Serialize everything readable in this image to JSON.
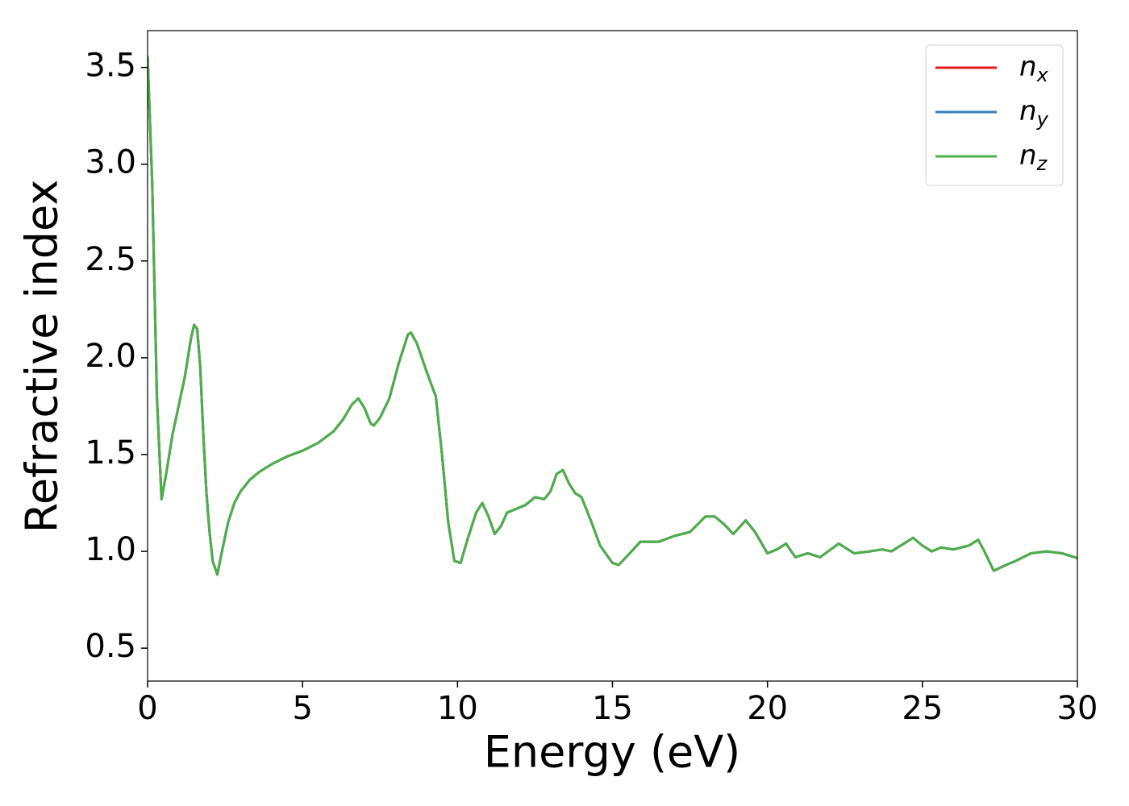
{
  "chart_data": {
    "type": "line",
    "xlabel": "Energy (eV)",
    "ylabel": "Refractive index",
    "x": [
      0,
      0.15,
      0.3,
      0.45,
      0.6,
      0.8,
      1.0,
      1.2,
      1.4,
      1.5,
      1.6,
      1.7,
      1.8,
      1.9,
      2.0,
      2.1,
      2.25,
      2.4,
      2.6,
      2.8,
      3.0,
      3.3,
      3.6,
      4.0,
      4.5,
      5.0,
      5.5,
      6.0,
      6.3,
      6.6,
      6.8,
      7.0,
      7.2,
      7.3,
      7.5,
      7.8,
      8.1,
      8.4,
      8.5,
      8.7,
      9.0,
      9.3,
      9.5,
      9.7,
      9.9,
      10.1,
      10.3,
      10.6,
      10.8,
      11.0,
      11.2,
      11.4,
      11.6,
      11.9,
      12.2,
      12.5,
      12.8,
      13.0,
      13.2,
      13.4,
      13.6,
      13.8,
      14.0,
      14.3,
      14.6,
      15.0,
      15.2,
      15.5,
      15.9,
      16.2,
      16.5,
      17.0,
      17.5,
      18.0,
      18.3,
      18.6,
      18.9,
      19.3,
      19.6,
      20.0,
      20.3,
      20.6,
      20.9,
      21.3,
      21.7,
      22.3,
      22.8,
      23.3,
      23.7,
      24.0,
      24.5,
      24.7,
      25.0,
      25.3,
      25.6,
      26.0,
      26.5,
      26.8,
      27.0,
      27.3,
      27.7,
      28.0,
      28.5,
      29.0,
      29.5,
      30.0
    ],
    "series": [
      {
        "name": "nx",
        "color": "#e41a1c",
        "values": [
          3.56,
          2.9,
          1.8,
          1.27,
          1.4,
          1.6,
          1.75,
          1.9,
          2.1,
          2.17,
          2.15,
          1.95,
          1.6,
          1.3,
          1.1,
          0.95,
          0.88,
          1.0,
          1.15,
          1.25,
          1.31,
          1.37,
          1.41,
          1.45,
          1.49,
          1.52,
          1.56,
          1.62,
          1.68,
          1.76,
          1.79,
          1.74,
          1.66,
          1.65,
          1.69,
          1.79,
          1.97,
          2.12,
          2.13,
          2.07,
          1.93,
          1.8,
          1.5,
          1.15,
          0.95,
          0.94,
          1.05,
          1.2,
          1.25,
          1.18,
          1.09,
          1.13,
          1.2,
          1.22,
          1.24,
          1.28,
          1.27,
          1.31,
          1.4,
          1.42,
          1.35,
          1.3,
          1.28,
          1.16,
          1.03,
          0.94,
          0.93,
          0.98,
          1.05,
          1.05,
          1.05,
          1.08,
          1.1,
          1.18,
          1.18,
          1.14,
          1.09,
          1.16,
          1.1,
          0.99,
          1.01,
          1.04,
          0.97,
          0.99,
          0.97,
          1.04,
          0.99,
          1.0,
          1.01,
          1.0,
          1.05,
          1.07,
          1.03,
          1.0,
          1.02,
          1.01,
          1.03,
          1.06,
          1.0,
          0.9,
          0.93,
          0.95,
          0.99,
          1.0,
          0.99,
          0.965
        ]
      },
      {
        "name": "ny",
        "color": "#377eb8",
        "values": [
          3.56,
          2.9,
          1.8,
          1.27,
          1.4,
          1.6,
          1.75,
          1.9,
          2.1,
          2.17,
          2.15,
          1.95,
          1.6,
          1.3,
          1.1,
          0.95,
          0.88,
          1.0,
          1.15,
          1.25,
          1.31,
          1.37,
          1.41,
          1.45,
          1.49,
          1.52,
          1.56,
          1.62,
          1.68,
          1.76,
          1.79,
          1.74,
          1.66,
          1.65,
          1.69,
          1.79,
          1.97,
          2.12,
          2.13,
          2.07,
          1.93,
          1.8,
          1.5,
          1.15,
          0.95,
          0.94,
          1.05,
          1.2,
          1.25,
          1.18,
          1.09,
          1.13,
          1.2,
          1.22,
          1.24,
          1.28,
          1.27,
          1.31,
          1.4,
          1.42,
          1.35,
          1.3,
          1.28,
          1.16,
          1.03,
          0.94,
          0.93,
          0.98,
          1.05,
          1.05,
          1.05,
          1.08,
          1.1,
          1.18,
          1.18,
          1.14,
          1.09,
          1.16,
          1.1,
          0.99,
          1.01,
          1.04,
          0.97,
          0.99,
          0.97,
          1.04,
          0.99,
          1.0,
          1.01,
          1.0,
          1.05,
          1.07,
          1.03,
          1.0,
          1.02,
          1.01,
          1.03,
          1.06,
          1.0,
          0.9,
          0.93,
          0.95,
          0.99,
          1.0,
          0.99,
          0.965
        ]
      },
      {
        "name": "nz",
        "color": "#4daf4a",
        "values": [
          3.56,
          2.9,
          1.8,
          1.27,
          1.4,
          1.6,
          1.75,
          1.9,
          2.1,
          2.17,
          2.15,
          1.95,
          1.6,
          1.3,
          1.1,
          0.95,
          0.88,
          1.0,
          1.15,
          1.25,
          1.31,
          1.37,
          1.41,
          1.45,
          1.49,
          1.52,
          1.56,
          1.62,
          1.68,
          1.76,
          1.79,
          1.74,
          1.66,
          1.65,
          1.69,
          1.79,
          1.97,
          2.12,
          2.13,
          2.07,
          1.93,
          1.8,
          1.5,
          1.15,
          0.95,
          0.94,
          1.05,
          1.2,
          1.25,
          1.18,
          1.09,
          1.13,
          1.2,
          1.22,
          1.24,
          1.28,
          1.27,
          1.31,
          1.4,
          1.42,
          1.35,
          1.3,
          1.28,
          1.16,
          1.03,
          0.94,
          0.93,
          0.98,
          1.05,
          1.05,
          1.05,
          1.08,
          1.1,
          1.18,
          1.18,
          1.14,
          1.09,
          1.16,
          1.1,
          0.99,
          1.01,
          1.04,
          0.97,
          0.99,
          0.97,
          1.04,
          0.99,
          1.0,
          1.01,
          1.0,
          1.05,
          1.07,
          1.03,
          1.0,
          1.02,
          1.01,
          1.03,
          1.06,
          1.0,
          0.9,
          0.93,
          0.95,
          0.99,
          1.0,
          0.99,
          0.965
        ]
      }
    ],
    "xlim": [
      0,
      30
    ],
    "xticks": [
      0,
      5,
      10,
      15,
      20,
      25,
      30
    ],
    "ylim": [
      0.33,
      3.69
    ],
    "yticks": [
      0.5,
      {
        "value": 1,
        "label": "1.0"
      },
      1.5,
      {
        "value": 2,
        "label": "2.0"
      },
      2.5,
      {
        "value": 3,
        "label": "3.0"
      },
      3.5
    ],
    "grid": false,
    "legend": "upper right"
  }
}
